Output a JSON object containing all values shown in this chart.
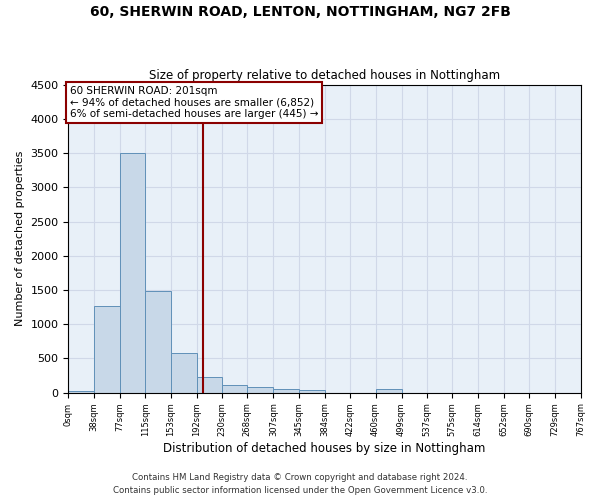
{
  "title1": "60, SHERWIN ROAD, LENTON, NOTTINGHAM, NG7 2FB",
  "title2": "Size of property relative to detached houses in Nottingham",
  "xlabel": "Distribution of detached houses by size in Nottingham",
  "ylabel": "Number of detached properties",
  "property_size": 201,
  "bin_edges": [
    0,
    38,
    77,
    115,
    153,
    192,
    230,
    268,
    307,
    345,
    384,
    422,
    460,
    499,
    537,
    575,
    614,
    652,
    690,
    729,
    767
  ],
  "bar_heights": [
    30,
    1270,
    3500,
    1480,
    580,
    235,
    115,
    80,
    55,
    45,
    0,
    0,
    55,
    0,
    0,
    0,
    0,
    0,
    0,
    0
  ],
  "bar_color": "#c8d8e8",
  "bar_edgecolor": "#6090b8",
  "vline_color": "#8b0000",
  "vline_x": 201,
  "annotation_line1": "60 SHERWIN ROAD: 201sqm",
  "annotation_line2": "← 94% of detached houses are smaller (6,852)",
  "annotation_line3": "6% of semi-detached houses are larger (445) →",
  "annotation_box_color": "#8b0000",
  "ylim": [
    0,
    4500
  ],
  "yticks": [
    0,
    500,
    1000,
    1500,
    2000,
    2500,
    3000,
    3500,
    4000,
    4500
  ],
  "grid_color": "#d0d8e8",
  "bg_color": "#e8f0f8",
  "footer1": "Contains HM Land Registry data © Crown copyright and database right 2024.",
  "footer2": "Contains public sector information licensed under the Open Government Licence v3.0."
}
